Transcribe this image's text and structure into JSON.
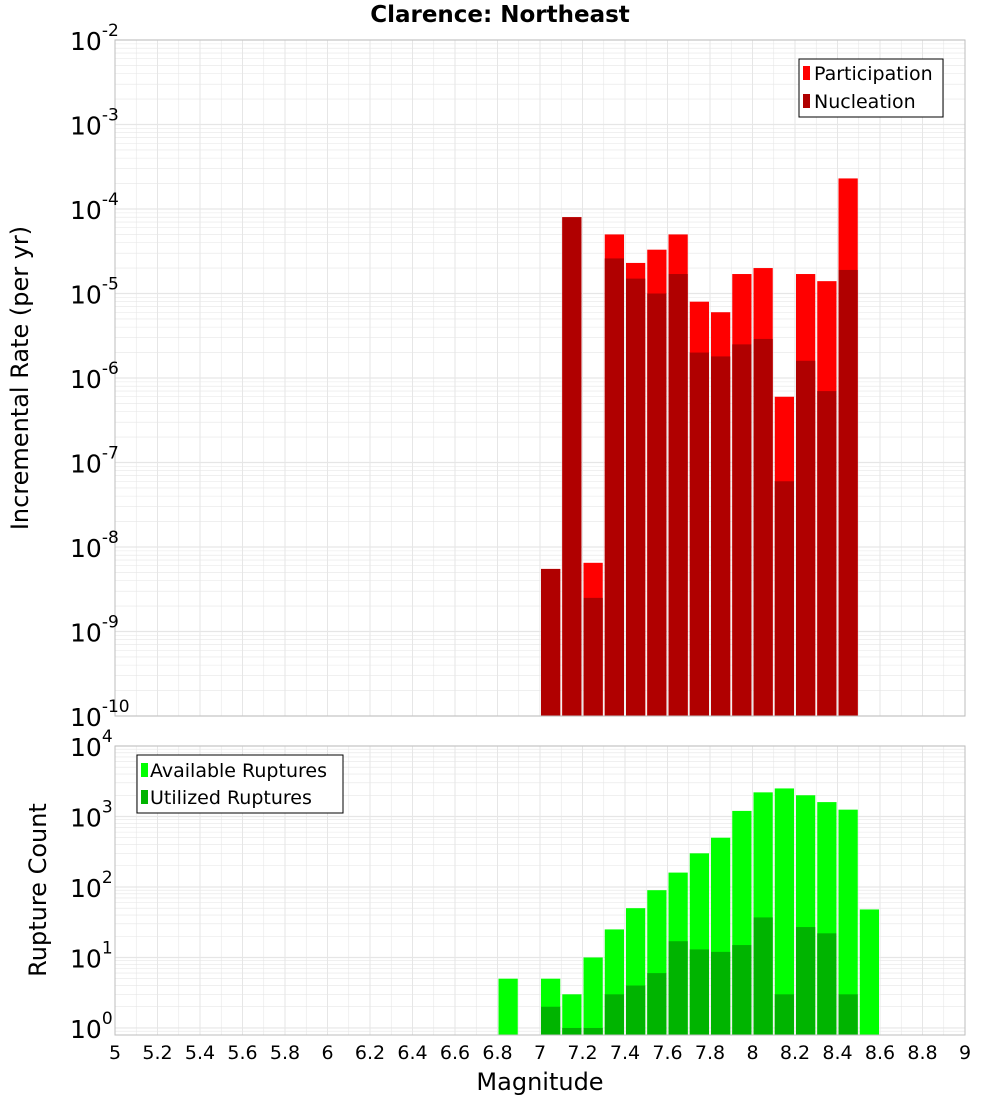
{
  "title": "Clarence: Northeast",
  "xlabel": "Magnitude",
  "colors": {
    "participation": "#ff0000",
    "nucleation": "#b00000",
    "available": "#00ff00",
    "utilized": "#00b400",
    "grid": "#e6e6e6",
    "frame": "#bdbdbd"
  },
  "chart_data": [
    {
      "type": "bar",
      "scale": "log",
      "title": "Clarence: Northeast",
      "xlabel": "Magnitude",
      "ylabel": "Incremental Rate (per yr)",
      "xlim": [
        5,
        9
      ],
      "ylim_exp": [
        -10,
        -2
      ],
      "legend": "top-right",
      "grid": true,
      "x": [
        7.05,
        7.15,
        7.25,
        7.35,
        7.45,
        7.55,
        7.65,
        7.75,
        7.85,
        7.95,
        8.05,
        8.15,
        8.25,
        8.35,
        8.45
      ],
      "series": [
        {
          "name": "Participation",
          "color": "#ff0000",
          "values": [
            5.5e-09,
            8e-05,
            6.5e-09,
            5e-05,
            2.3e-05,
            3.3e-05,
            5e-05,
            8e-06,
            6e-06,
            1.7e-05,
            2e-05,
            6e-07,
            1.7e-05,
            1.4e-05,
            0.00023
          ]
        },
        {
          "name": "Nucleation",
          "color": "#b00000",
          "values": [
            5.5e-09,
            8e-05,
            2.5e-09,
            2.6e-05,
            1.5e-05,
            1e-05,
            1.7e-05,
            2e-06,
            1.8e-06,
            2.5e-06,
            2.9e-06,
            6e-08,
            1.6e-06,
            7e-07,
            1.9e-05
          ]
        }
      ]
    },
    {
      "type": "bar",
      "scale": "log",
      "xlabel": "Magnitude",
      "ylabel": "Rupture Count",
      "xlim": [
        5,
        9
      ],
      "ylim_exp": [
        -0.1,
        4
      ],
      "legend": "top-left",
      "grid": true,
      "x": [
        6.85,
        7.05,
        7.15,
        7.25,
        7.35,
        7.45,
        7.55,
        7.65,
        7.75,
        7.85,
        7.95,
        8.05,
        8.15,
        8.25,
        8.35,
        8.45,
        8.55
      ],
      "series": [
        {
          "name": "Available Ruptures",
          "color": "#00ff00",
          "values": [
            5,
            5,
            3,
            10,
            25,
            50,
            90,
            160,
            300,
            500,
            1200,
            2200,
            2500,
            2000,
            1600,
            1250,
            48
          ]
        },
        {
          "name": "Utilized Ruptures",
          "color": "#00b400",
          "values": [
            0,
            2,
            1,
            1,
            3,
            4,
            6,
            17,
            13,
            12,
            15,
            37,
            3,
            27,
            22,
            3,
            0
          ]
        }
      ]
    }
  ]
}
